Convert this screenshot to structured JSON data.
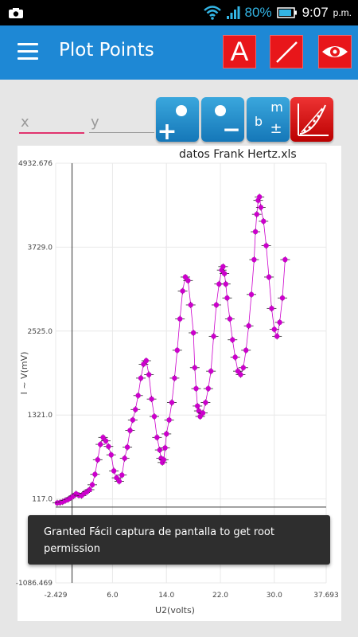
{
  "status": {
    "battery": "80%",
    "time": "9:07",
    "ampm": "p.m."
  },
  "app": {
    "title": "Plot Points",
    "btn_a_label": "A"
  },
  "inputs": {
    "x_placeholder": "x",
    "y_placeholder": "y"
  },
  "tools": {
    "add_label": "+",
    "remove_label": "−",
    "fit_b": "b",
    "fit_m": "m",
    "fit_pm": "±"
  },
  "plot": {
    "filename": "datos Frank Hertz.xls"
  },
  "toast": "Granted Fácil captura de pantalla to get root permission",
  "chart_data": {
    "type": "scatter",
    "title": "datos Frank Hertz.xls",
    "xlabel": "U2(volts)",
    "ylabel": "I ~ V(mV)",
    "xlim": [
      -2.429,
      37.693
    ],
    "ylim": [
      -1086.469,
      4932.676
    ],
    "xticks": [
      "-2.429",
      "6.0",
      "14.0",
      "22.0",
      "30.0",
      "37.693"
    ],
    "yticks": [
      "4932.676",
      "3729.0",
      "2525.0",
      "1321.0",
      "117.0",
      "-1086.469"
    ],
    "grid": true,
    "series": [
      {
        "color": "#cc00cc",
        "x": [
          -2.2,
          -1.8,
          -1.4,
          -1.0,
          -0.6,
          -0.2,
          0.2,
          0.6,
          1.0,
          1.4,
          1.8,
          2.2,
          2.6,
          3.0,
          3.4,
          3.8,
          4.2,
          4.6,
          5.0,
          5.4,
          5.8,
          6.2,
          6.6,
          7.0,
          7.4,
          7.8,
          8.2,
          8.6,
          9.0,
          9.4,
          9.8,
          10.2,
          10.6,
          11.0,
          11.4,
          11.8,
          12.2,
          12.6,
          13.0,
          13.2,
          13.4,
          13.6,
          13.8,
          14.0,
          14.4,
          14.8,
          15.2,
          15.6,
          16.0,
          16.4,
          16.8,
          17.2,
          17.6,
          18.0,
          18.2,
          18.4,
          18.6,
          18.8,
          19.0,
          19.4,
          19.8,
          20.2,
          20.6,
          21.0,
          21.4,
          21.8,
          22.2,
          22.4,
          22.6,
          22.8,
          23.0,
          23.4,
          23.8,
          24.2,
          24.6,
          25.0,
          25.4,
          25.8,
          26.2,
          26.6,
          27.0,
          27.2,
          27.4,
          27.6,
          27.8,
          28.0,
          28.4,
          28.8,
          29.2,
          29.6,
          30.0,
          30.4,
          30.8,
          31.2,
          31.6
        ],
        "y": [
          60,
          65,
          75,
          95,
          110,
          135,
          160,
          190,
          170,
          165,
          200,
          220,
          250,
          320,
          470,
          680,
          900,
          1000,
          950,
          870,
          750,
          520,
          420,
          370,
          460,
          700,
          860,
          1100,
          1250,
          1400,
          1600,
          1850,
          2050,
          2100,
          1900,
          1550,
          1300,
          1000,
          820,
          700,
          640,
          680,
          850,
          1050,
          1250,
          1500,
          1850,
          2250,
          2700,
          3100,
          3300,
          3250,
          2900,
          2500,
          2000,
          1700,
          1450,
          1380,
          1300,
          1350,
          1500,
          1700,
          1950,
          2450,
          2900,
          3200,
          3400,
          3450,
          3350,
          3200,
          3000,
          2700,
          2400,
          2150,
          1950,
          1900,
          2000,
          2250,
          2600,
          3050,
          3550,
          3950,
          4200,
          4400,
          4450,
          4300,
          4100,
          3750,
          3300,
          2850,
          2550,
          2450,
          2650,
          3000,
          3550
        ]
      }
    ]
  }
}
